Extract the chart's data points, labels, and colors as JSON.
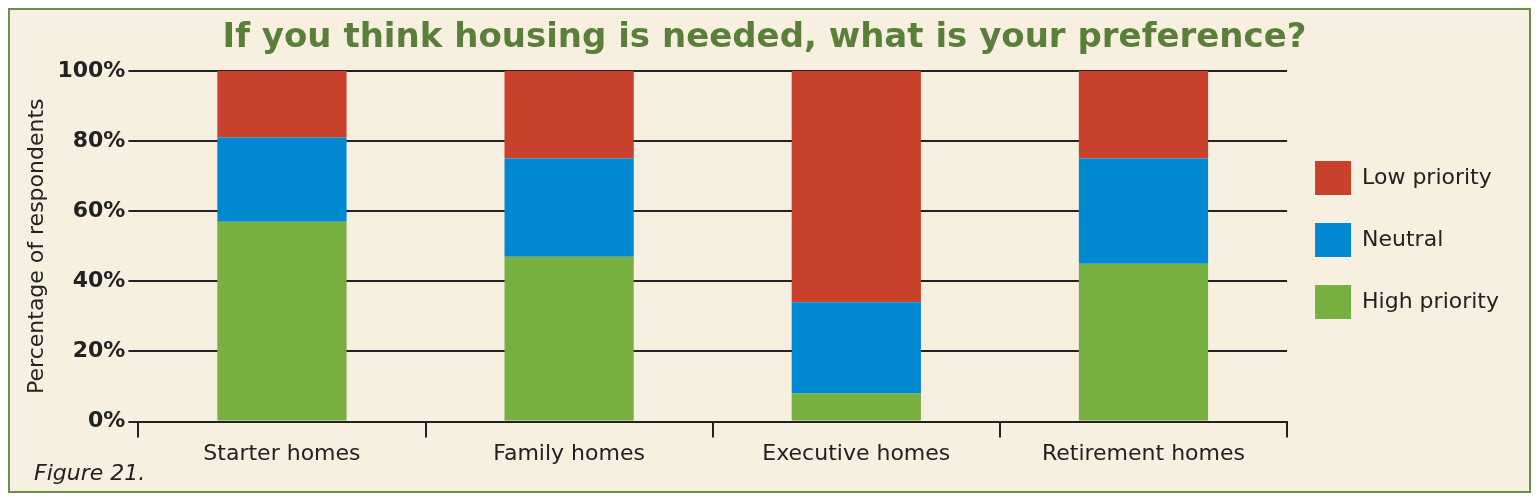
{
  "chart_data": {
    "type": "bar",
    "title": "If you think housing is needed, what is your preference?",
    "ylabel": "Percentage of respondents",
    "annotations": [
      "Figure 21."
    ],
    "categories": [
      "Starter homes",
      "Family homes",
      "Executive homes",
      "Retirement homes"
    ],
    "stacked": true,
    "series": [
      {
        "name": "High priority",
        "color": "#77b041",
        "values": [
          57,
          47,
          8,
          45
        ]
      },
      {
        "name": "Neutral",
        "color": "#0088d1",
        "values": [
          24,
          28,
          26,
          30
        ]
      },
      {
        "name": "Low priority",
        "color": "#c8412c",
        "values": [
          19,
          25,
          66,
          25
        ]
      }
    ],
    "ylim": [
      0,
      100
    ],
    "yticks": [
      {
        "value": 0,
        "label": "0%"
      },
      {
        "value": 20,
        "label": "20%"
      },
      {
        "value": 40,
        "label": "40%"
      },
      {
        "value": 60,
        "label": "60%"
      },
      {
        "value": 80,
        "label": "80%"
      },
      {
        "value": 100,
        "label": "100%"
      }
    ],
    "grid": "y",
    "legend": "right"
  }
}
